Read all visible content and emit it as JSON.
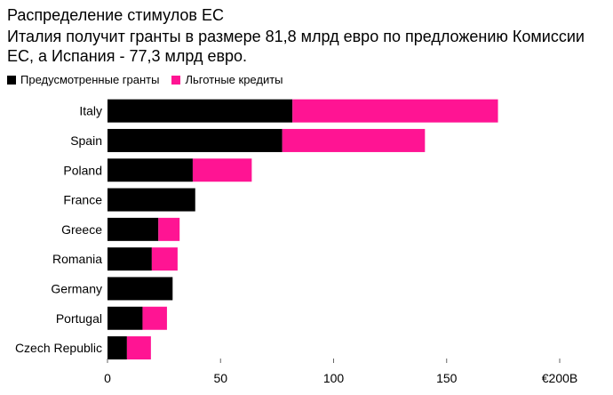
{
  "chart_data": {
    "type": "bar",
    "orientation": "horizontal",
    "stacked": true,
    "title": "Распределение стимулов ЕС",
    "subtitle": "Италия получит гранты в размере 81,8 млрд евро по предложению Комиссии ЕС, а Испания - 77,3 млрд евро.",
    "categories": [
      "Italy",
      "Spain",
      "Poland",
      "France",
      "Greece",
      "Romania",
      "Germany",
      "Portugal",
      "Czech Republic"
    ],
    "series": [
      {
        "name": "Предусмотренные гранты",
        "color": "#000000",
        "values": [
          81.8,
          77.3,
          37.7,
          38.8,
          22.5,
          19.6,
          28.8,
          15.5,
          8.6
        ]
      },
      {
        "name": "Льготные кредиты",
        "color": "#ff1493",
        "values": [
          90.9,
          63.1,
          26.1,
          0,
          9.4,
          11.4,
          0,
          10.8,
          10.6
        ]
      }
    ],
    "xlim": [
      0,
      200
    ],
    "xticks": [
      {
        "value": 0,
        "label": "0"
      },
      {
        "value": 50,
        "label": "50"
      },
      {
        "value": 100,
        "label": "100"
      },
      {
        "value": 150,
        "label": "150"
      },
      {
        "value": 200,
        "label": "€200B"
      }
    ],
    "grid": false,
    "legend_position": "top-left"
  }
}
